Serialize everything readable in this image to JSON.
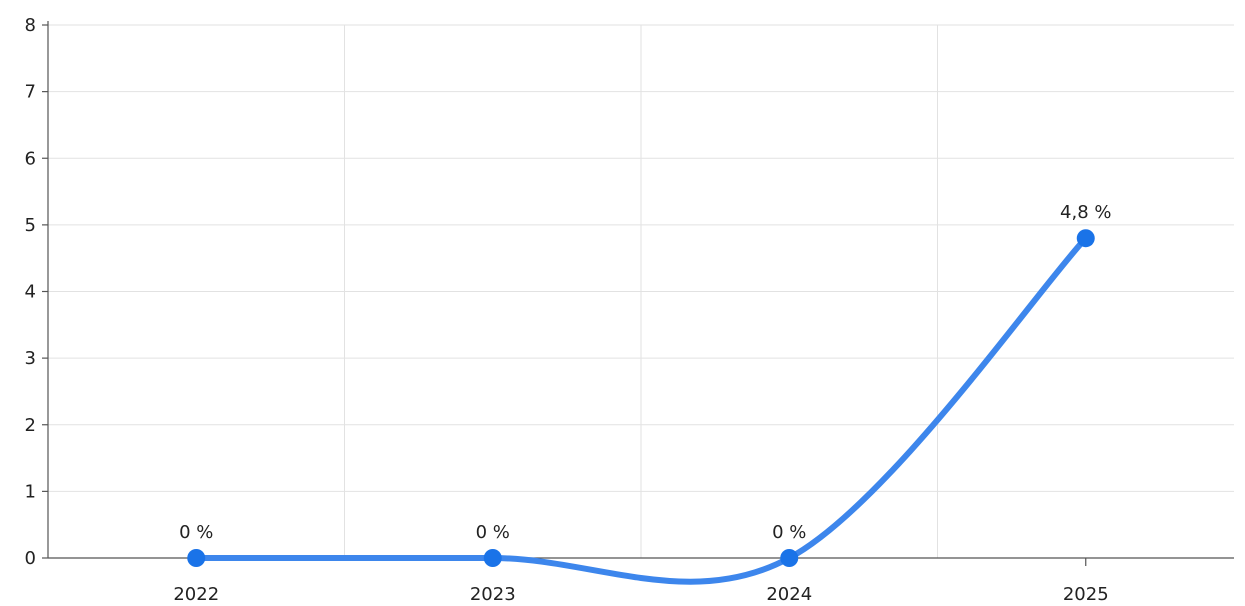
{
  "chart_data": {
    "type": "line",
    "categories": [
      "2022",
      "2023",
      "2024",
      "2025"
    ],
    "series": [
      {
        "values": [
          0,
          0,
          0,
          4.8
        ],
        "labels": [
          "0 %",
          "0 %",
          "0 %",
          "4,8 %"
        ],
        "color": "#1a73e8"
      }
    ],
    "yticks": [
      "0",
      "1",
      "2",
      "3",
      "4",
      "5",
      "6",
      "7",
      "8"
    ],
    "ylim": [
      0,
      8
    ],
    "grid": true,
    "smooth": true,
    "legend": false
  }
}
